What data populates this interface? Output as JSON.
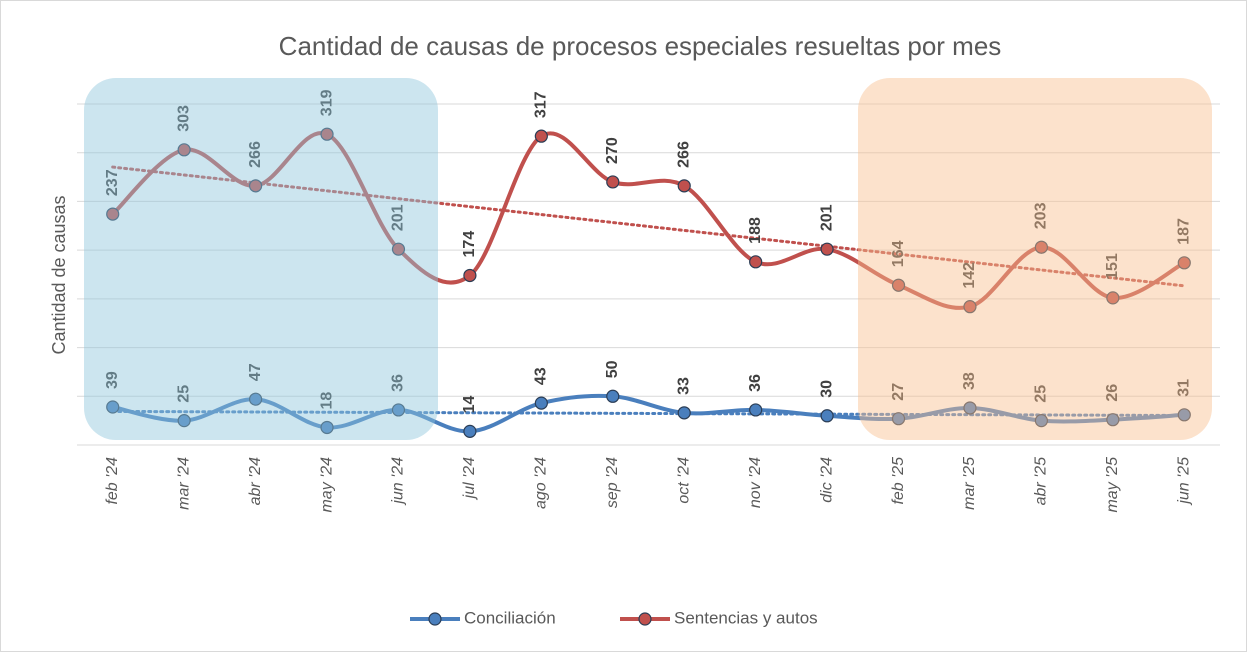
{
  "chart_data": {
    "type": "line",
    "title": "Cantidad de causas de procesos especiales resueltas por mes",
    "y_label": "Cantidad de causas",
    "categories": [
      "feb '24",
      "mar '24",
      "abr '24",
      "may '24",
      "jun '24",
      "jul '24",
      "ago '24",
      "sep '24",
      "oct '24",
      "nov '24",
      "dic '24",
      "feb '25",
      "mar '25",
      "abr '25",
      "may '25",
      "jun '25"
    ],
    "series": [
      {
        "name": "Conciliación",
        "color": "#4a7fbd",
        "values": [
          39,
          25,
          47,
          18,
          36,
          14,
          43,
          50,
          33,
          36,
          30,
          27,
          38,
          25,
          26,
          31
        ]
      },
      {
        "name": "Sentencias y autos",
        "color": "#c0504d",
        "values": [
          237,
          303,
          266,
          319,
          201,
          174,
          317,
          270,
          266,
          188,
          201,
          164,
          142,
          203,
          151,
          187
        ]
      }
    ],
    "ylim": [
      0,
      350
    ],
    "yticks": [
      0,
      50,
      100,
      150,
      200,
      250,
      300,
      350
    ],
    "grid": true,
    "trendline": true,
    "legend": "bottom"
  }
}
